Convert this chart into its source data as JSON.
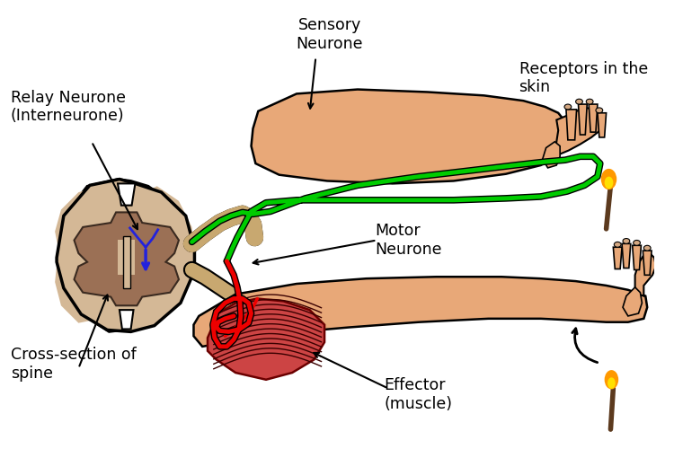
{
  "labels": {
    "sensory_neurone": "Sensory\nNeurone",
    "relay_neurone": "Relay Neurone\n(Interneurone)",
    "motor_neurone": "Motor\nNeurone",
    "cross_section": "Cross-section of\nspine",
    "receptors": "Receptors in the\nskin",
    "effector": "Effector\n(muscle)"
  },
  "colors": {
    "skin": "#E8A878",
    "spine_outer": "#D4B896",
    "spine_inner": "#C4A070",
    "gray_matter": "#9B7055",
    "green_nerve": "#00CC00",
    "red_nerve": "#EE0000",
    "blue_nerve": "#2222DD",
    "muscle_red": "#8B1010",
    "muscle_mid": "#CC3333",
    "outline": "#000000",
    "background": "#FFFFFF",
    "flame_yellow": "#FFE000",
    "flame_orange": "#FF9900",
    "stick": "#5C3A1E",
    "nerve_sheath": "#C8A870"
  },
  "figsize": [
    7.5,
    5.0
  ],
  "dpi": 100
}
